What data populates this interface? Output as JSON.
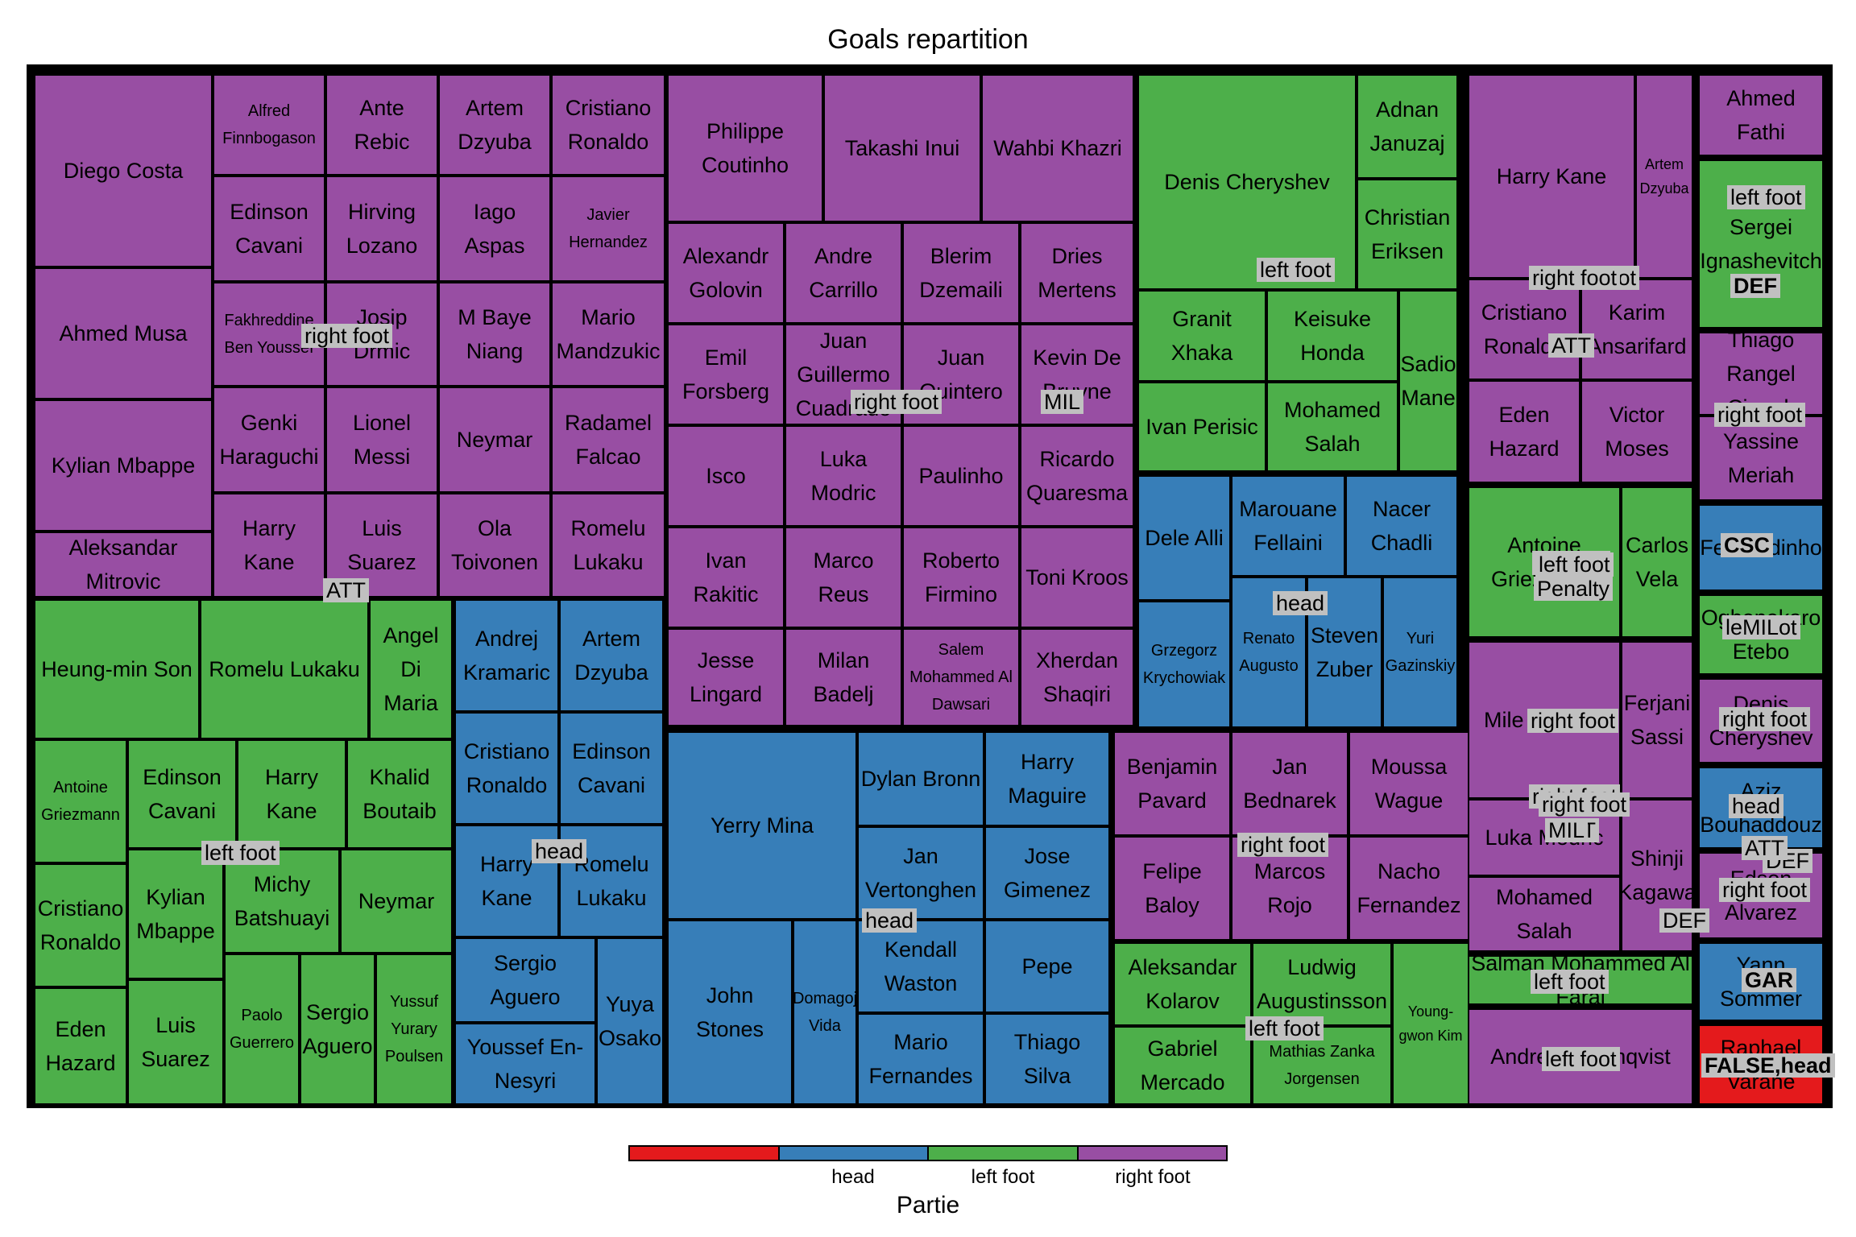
{
  "title": "Goals repartition",
  "colors": {
    "head": "#377eb8",
    "left foot": "#4daf4a",
    "right foot": "#984ea3",
    "FALSE": "#e41a1c",
    "frame": "#000000",
    "label_bg": "#c0c0c0"
  },
  "legend": {
    "title": "Partie",
    "ticks": [
      "head",
      "left foot",
      "right foot"
    ]
  },
  "chart_data": {
    "type": "treemap",
    "title": "Goals repartition",
    "hierarchy": [
      "group",
      "player"
    ],
    "color_by": "Partie",
    "groups": [
      {
        "label": "right foot",
        "category": "right foot",
        "players": [
          "Diego Costa",
          "Ahmed Musa",
          "Kylian Mbappe",
          "Aleksandar Mitrovic",
          "Alfred Finnbogason",
          "Ante Rebic",
          "Artem Dzyuba",
          "Cristiano Ronaldo",
          "Edinson Cavani",
          "Hirving Lozano",
          "Iago Aspas",
          "Javier Hernandez",
          "Fakhreddine Ben Youssef",
          "Josip Drmic",
          "M Baye Niang",
          "Mario Mandzukic",
          "Genki Haraguchi",
          "Lionel Messi",
          "Neymar",
          "Radamel Falcao",
          "Harry Kane",
          "Luis Suarez",
          "Ola Toivonen",
          "Romelu Lukaku"
        ]
      },
      {
        "label": "left foot",
        "category": "left foot",
        "players": [
          "Heung-min Son",
          "Romelu Lukaku",
          "Angel Di Maria",
          "Antoine Griezmann",
          "Edinson Cavani",
          "Harry Kane",
          "Khalid Boutaib",
          "Cristiano Ronaldo",
          "Kylian Mbappe",
          "Michy Batshuayi",
          "Neymar",
          "Eden Hazard",
          "Luis Suarez",
          "Paolo Guerrero",
          "Sergio Aguero",
          "Yussuf Yurary Poulsen"
        ]
      },
      {
        "label": "head",
        "category": "head",
        "players": [
          "Andrej Kramaric",
          "Artem Dzyuba",
          "Cristiano Ronaldo",
          "Edinson Cavani",
          "Harry Kane",
          "Romelu Lukaku",
          "Sergio Aguero",
          "Youssef En-Nesyri",
          "Yuya Osako"
        ]
      },
      {
        "label": "right foot",
        "category": "right foot",
        "players": [
          "Philippe Coutinho",
          "Takashi Inui",
          "Wahbi Khazri",
          "Alexandr Golovin",
          "Andre Carrillo",
          "Blerim Dzemaili",
          "Dries Mertens",
          "Emil Forsberg",
          "Juan Guillermo Cuadrado",
          "Juan Quintero",
          "Kevin De Bruyne",
          "Isco",
          "Luka Modric",
          "Paulinho",
          "Ricardo Quaresma",
          "Ivan Rakitic",
          "Marco Reus",
          "Roberto Firmino",
          "Toni Kroos",
          "Jesse Lingard",
          "Milan Badelj",
          "Salem Mohammed Al Dawsari",
          "Xherdan Shaqiri"
        ]
      },
      {
        "label": "head",
        "category": "head",
        "players": [
          "Yerry Mina",
          "Dylan Bronn",
          "Harry Maguire",
          "Jan Vertonghen",
          "Jose Gimenez",
          "Kendall Waston",
          "Pepe",
          "John Stones",
          "Domagoj Vida",
          "Mario Fernandes",
          "Thiago Silva"
        ]
      },
      {
        "label": "right foot",
        "category": "right foot",
        "players": [
          "Benjamin Pavard",
          "Jan Bednarek",
          "Moussa Wague",
          "Felipe Baloy",
          "Marcos Rojo",
          "Nacho Fernandez"
        ]
      },
      {
        "label": "left foot",
        "category": "left foot",
        "players": [
          "Aleksandar Kolarov",
          "Ludwig Augustinsson",
          "Young-gwon Kim",
          "Gabriel Mercado",
          "Mathias Zanka Jorgensen"
        ]
      },
      {
        "label": "left foot",
        "category": "left foot",
        "players": [
          "Denis Cheryshev",
          "Adnan Januzaj",
          "Christian Eriksen",
          "Granit Xhaka",
          "Keisuke Honda",
          "Sadio Mane",
          "Ivan Perisic",
          "Mohamed Salah"
        ]
      },
      {
        "label": "head",
        "category": "head",
        "players": [
          "Dele Alli",
          "Marouane Fellaini",
          "Nacer Chadli",
          "Grzegorz Krychowiak",
          "Renato Augusto",
          "Steven Zuber",
          "Yuri Gazinskiy"
        ]
      },
      {
        "label": "right foot",
        "category": "right foot",
        "players": [
          "Harry Kane",
          "Artem Dzyuba",
          "Cristiano Ronaldo",
          "Karim Ansarifard",
          "Eden Hazard",
          "Victor Moses"
        ]
      },
      {
        "label": "left foot",
        "category": "left foot",
        "players": [
          "Antoine Griezmann",
          "Carlos Vela"
        ]
      },
      {
        "label": "right foot",
        "category": "right foot",
        "players": [
          "Mile Jedinak",
          "Ferjani Sassi",
          "Luka Modric",
          "Shinji Kagawa",
          "Mohamed Salah"
        ]
      },
      {
        "label": "left foot",
        "category": "left foot",
        "players": [
          "Salman Mohammed Al Faraj"
        ]
      },
      {
        "label": "right foot",
        "category": "right foot",
        "players": [
          "Andreas Granqvist"
        ]
      },
      {
        "label": "right foot",
        "category": "right foot",
        "players": [
          "Ahmed Fathi"
        ]
      },
      {
        "label": "left foot",
        "category": "left foot",
        "players": [
          "Sergei Ignashevitch"
        ]
      },
      {
        "label": "right foot",
        "category": "right foot",
        "players": [
          "Thiago Rangel Cionek",
          "Yassine Meriah"
        ]
      },
      {
        "label": "head",
        "category": "head",
        "players": [
          "Fernandinho"
        ]
      },
      {
        "label": "left foot",
        "category": "left foot",
        "players": [
          "Oghenekaro Etebo"
        ]
      },
      {
        "label": "right foot",
        "category": "right foot",
        "players": [
          "Denis Cheryshev"
        ]
      },
      {
        "label": "head",
        "category": "head",
        "players": [
          "Aziz Bouhaddouz"
        ]
      },
      {
        "label": "right foot",
        "category": "right foot",
        "players": [
          "Edson Alvarez"
        ]
      },
      {
        "label": "head",
        "category": "head",
        "players": [
          "Yann Sommer"
        ]
      },
      {
        "label": "FALSE",
        "category": "FALSE",
        "players": [
          "Raphael Varane"
        ]
      }
    ],
    "overlay_labels": [
      "right foot",
      "ATT",
      "left foot",
      "head",
      "right foot",
      "DEF",
      "head",
      "right foot",
      "MIL",
      "left foot",
      "left foot",
      "head",
      "right foot",
      "left foot",
      "right foot",
      "left foot",
      "right foot",
      "ATT",
      "right foot",
      "ATT",
      "left foot",
      "Penalty",
      "right foot",
      "MIL",
      "left foot",
      "DEF",
      "DEF",
      "left foot",
      "right foot",
      "CSC",
      "leMILot",
      "right foot",
      "head",
      "ATT",
      "right foot",
      "GAR",
      "FALSE,head"
    ],
    "legend": {
      "title": "Partie",
      "ticks": [
        "head",
        "left foot",
        "right foot"
      ]
    }
  }
}
